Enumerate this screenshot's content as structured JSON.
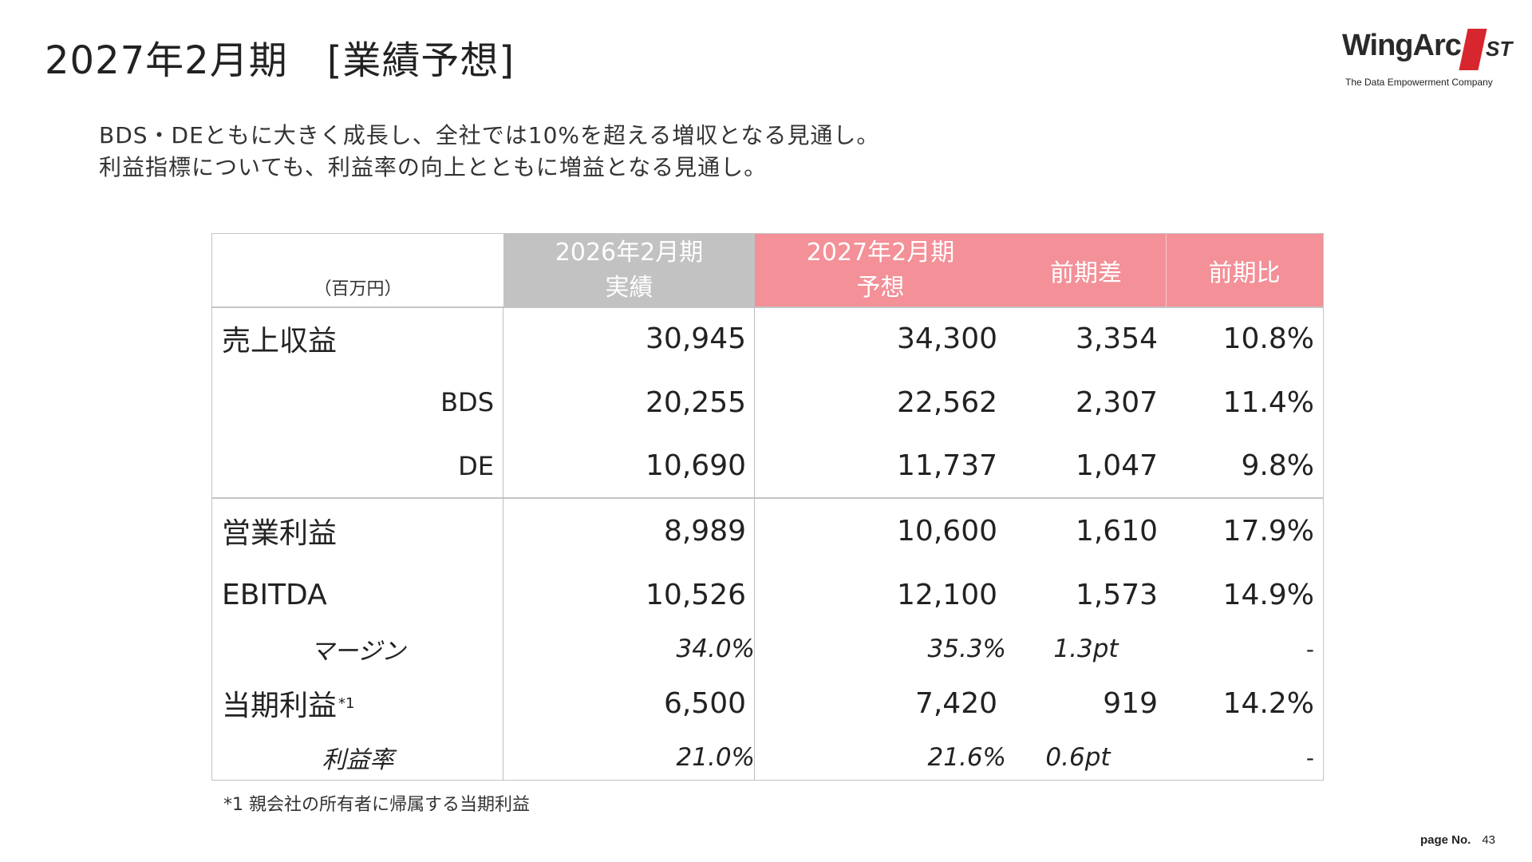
{
  "slide": {
    "title": "2027年2月期　[業績予想]",
    "intro_lines": [
      "BDS・DEともに大きく成長し、全社では10%を超える増収となる見通し。",
      "利益指標についても、利益率の向上とともに増益となる見通し。"
    ],
    "footnote": "*1 親会社の所有者に帰属する当期利益",
    "page_label": "page No.",
    "page_number": "43"
  },
  "logo": {
    "word": "WingArc",
    "st": "ST",
    "tagline": "The Data Empowerment Company",
    "accent_color": "#d7262e"
  },
  "table": {
    "unit": "（百万円）",
    "headers": {
      "prev_line1": "2026年2月期",
      "prev_line2": "実績",
      "fc_line1": "2027年2月期",
      "fc_line2": "予想",
      "diff": "前期差",
      "ratio": "前期比"
    },
    "header_colors": {
      "prev": "#c2c2c2",
      "forecast": "#f39098"
    },
    "rows": [
      {
        "label": "売上収益",
        "prev": "30,945",
        "fc": "34,300",
        "diff": "3,354",
        "ratio": "10.8%"
      },
      {
        "label": "BDS",
        "prev": "20,255",
        "fc": "22,562",
        "diff": "2,307",
        "ratio": "11.4%"
      },
      {
        "label": "DE",
        "prev": "10,690",
        "fc": "11,737",
        "diff": "1,047",
        "ratio": "9.8%"
      },
      {
        "label": "営業利益",
        "prev": "8,989",
        "fc": "10,600",
        "diff": "1,610",
        "ratio": "17.9%"
      },
      {
        "label": "EBITDA",
        "prev": "10,526",
        "fc": "12,100",
        "diff": "1,573",
        "ratio": "14.9%"
      },
      {
        "label": "マージン",
        "prev": "34.0%",
        "fc": "35.3%",
        "diff": "1.3pt",
        "ratio": "-"
      },
      {
        "label": "当期利益",
        "label_note": "*1",
        "prev": "6,500",
        "fc": "7,420",
        "diff": "919",
        "ratio": "14.2%"
      },
      {
        "label": "利益率",
        "prev": "21.0%",
        "fc": "21.6%",
        "diff": "0.6pt",
        "ratio": "-"
      }
    ]
  }
}
